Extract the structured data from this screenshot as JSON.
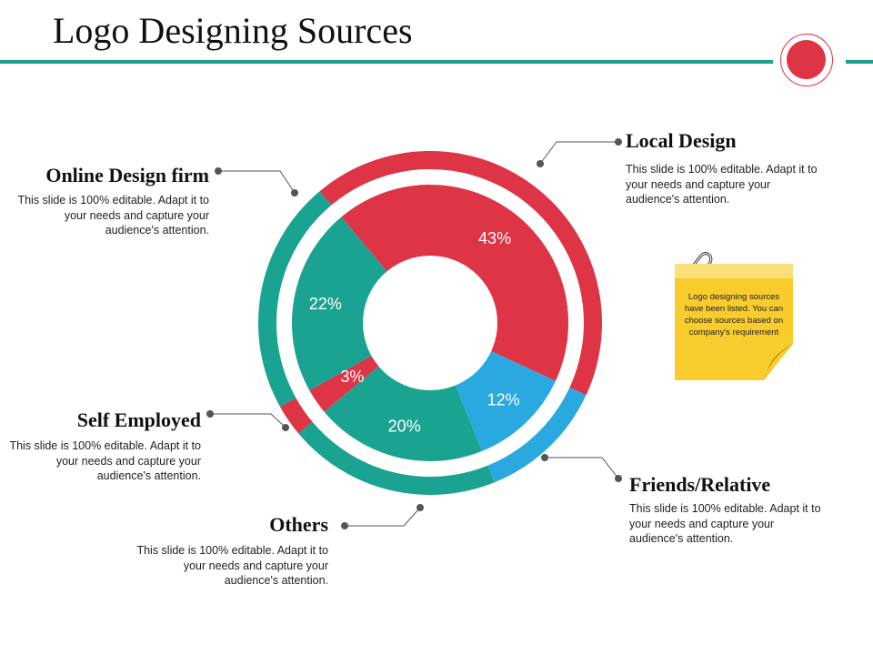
{
  "title": "Logo Designing Sources",
  "chart_data": {
    "type": "pie",
    "categories": [
      "Local Design",
      "Friends/Relative",
      "Others",
      "Self Employed",
      "Online Design firm"
    ],
    "values": [
      43,
      12,
      20,
      3,
      22
    ],
    "value_labels": [
      "43%",
      "12%",
      "20%",
      "3%",
      "22%"
    ],
    "colors": [
      "#dd3446",
      "#29a9e0",
      "#1aa391",
      "#dd3446",
      "#1aa391"
    ]
  },
  "labels": {
    "local_design": {
      "title": "Local Design",
      "desc": "This slide is 100% editable. Adapt it to your needs and capture your audience's attention."
    },
    "online_design_firm": {
      "title": "Online Design firm",
      "desc": "This slide is 100% editable. Adapt it to your needs and capture your audience's attention."
    },
    "self_employed": {
      "title": "Self Employed",
      "desc": "This slide is 100% editable. Adapt it to your needs and capture your audience's attention."
    },
    "others": {
      "title": "Others",
      "desc": "This slide is 100% editable. Adapt it to your needs and capture your audience's attention."
    },
    "friends_relative": {
      "title": "Friends/Relative",
      "desc": "This slide is 100% editable. Adapt it to your needs and capture your audience's attention."
    }
  },
  "sticky_note": {
    "text": "Logo designing sources have been listed. You can choose sources based on company's requirement",
    "color": "#f8cc2d"
  },
  "accent_colors": {
    "teal": "#1aa391",
    "red": "#dd3446",
    "blue": "#29a9e0"
  }
}
